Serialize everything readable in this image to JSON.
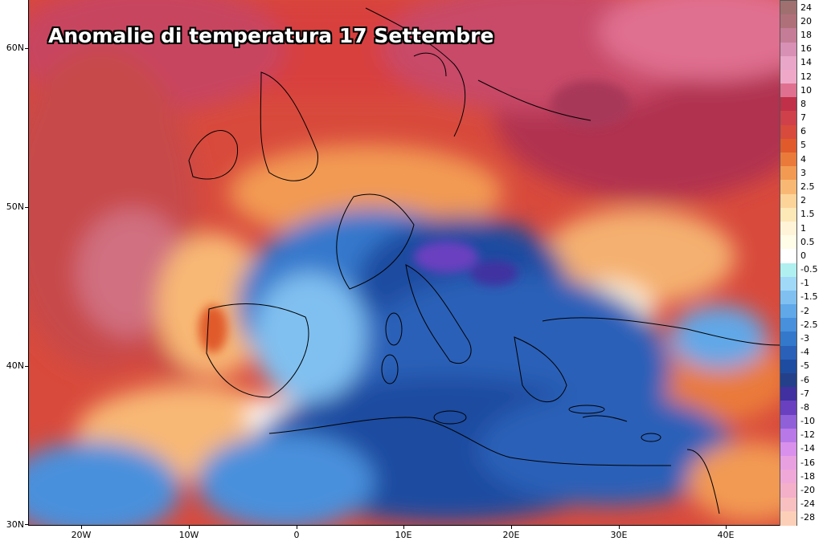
{
  "map": {
    "title": "Anomalie di temperatura 17 Settembre",
    "lat_labels": [
      "60N",
      "50N",
      "40N",
      "30N"
    ],
    "lon_labels": [
      "20W",
      "10W",
      "0",
      "10E",
      "20E",
      "30E",
      "40E"
    ]
  },
  "legend": {
    "labels": [
      "24",
      "20",
      "18",
      "16",
      "14",
      "12",
      "10",
      "8",
      "7",
      "6",
      "5",
      "4",
      "3",
      "2.5",
      "2",
      "1.5",
      "1",
      "0.5",
      "0",
      "-0.5",
      "-1",
      "-1.5",
      "-2",
      "-2.5",
      "-3",
      "-4",
      "-5",
      "-6",
      "-7",
      "-8",
      "-10",
      "-12",
      "-14",
      "-16",
      "-18",
      "-20",
      "-24",
      "-28"
    ],
    "colors": [
      "#a07070",
      "#b0707a",
      "#c57c96",
      "#d890b4",
      "#e9a6c8",
      "#f0a8c8",
      "#e07090",
      "#c03048",
      "#d0404a",
      "#d84a3c",
      "#e05a2c",
      "#ea7a3a",
      "#f29a52",
      "#f8b874",
      "#fcd49a",
      "#fde8b8",
      "#fff4d8",
      "#fffce8",
      "#ffffff",
      "#b0f0f0",
      "#a0d8f8",
      "#80c0f0",
      "#60a8e8",
      "#4890dc",
      "#3478cc",
      "#2a60b8",
      "#1e4ca0",
      "#24408a",
      "#4030a0",
      "#6a40c0",
      "#9060d8",
      "#b878e8",
      "#d890ec",
      "#e8a0e0",
      "#f0a8d8",
      "#f4b0c8",
      "#f8c0c0",
      "#fcd0b8"
    ]
  }
}
